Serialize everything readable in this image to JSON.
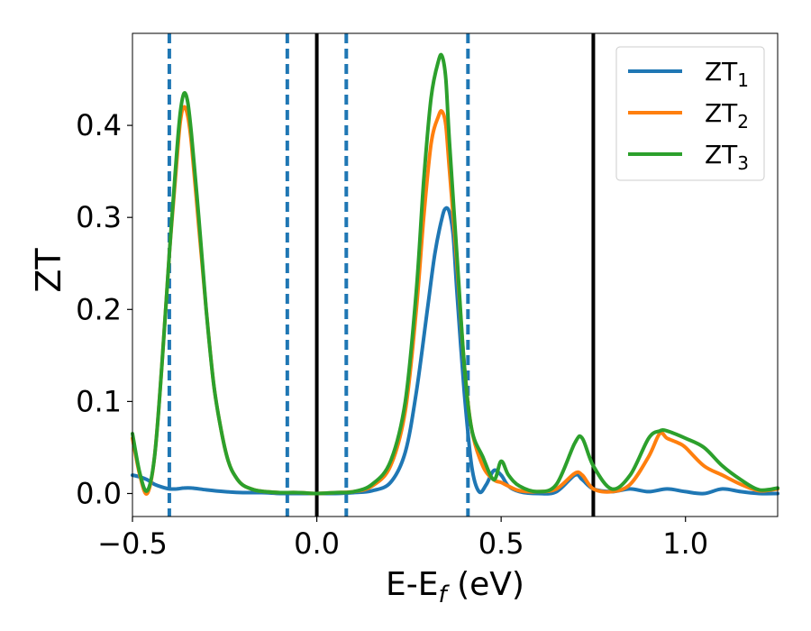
{
  "chart_data": {
    "type": "line",
    "xlabel_main": "E-E",
    "xlabel_sub": "f",
    "xlabel_tail": " (eV)",
    "ylabel": "ZT",
    "xlim": [
      -0.5,
      1.25
    ],
    "ylim": [
      -0.025,
      0.5
    ],
    "x_ticks": [
      {
        "value": -0.5,
        "label": "−0.5"
      },
      {
        "value": 0.0,
        "label": "0.0"
      },
      {
        "value": 0.5,
        "label": "0.5"
      },
      {
        "value": 1.0,
        "label": "1.0"
      }
    ],
    "y_ticks": [
      {
        "value": 0.0,
        "label": "0.0"
      },
      {
        "value": 0.1,
        "label": "0.1"
      },
      {
        "value": 0.2,
        "label": "0.2"
      },
      {
        "value": 0.3,
        "label": "0.3"
      },
      {
        "value": 0.4,
        "label": "0.4"
      }
    ],
    "grid": false,
    "legend_position": "top-right",
    "vlines_solid": [
      0.0,
      0.75
    ],
    "vlines_dashed": [
      -0.4,
      -0.08,
      0.08,
      0.41
    ],
    "series": [
      {
        "name": "ZT",
        "sub": "1",
        "color": "#1f77b4",
        "x": [
          -0.5,
          -0.48,
          -0.46,
          -0.44,
          -0.42,
          -0.4,
          -0.38,
          -0.36,
          -0.34,
          -0.3,
          -0.25,
          -0.2,
          -0.15,
          -0.1,
          -0.05,
          0.0,
          0.05,
          0.1,
          0.15,
          0.2,
          0.24,
          0.27,
          0.3,
          0.32,
          0.34,
          0.35,
          0.36,
          0.37,
          0.38,
          0.4,
          0.42,
          0.44,
          0.46,
          0.48,
          0.5,
          0.52,
          0.55,
          0.6,
          0.65,
          0.7,
          0.72,
          0.75,
          0.8,
          0.85,
          0.9,
          0.95,
          1.0,
          1.05,
          1.1,
          1.15,
          1.2,
          1.25
        ],
        "y": [
          0.02,
          0.018,
          0.015,
          0.01,
          0.007,
          0.005,
          0.005,
          0.006,
          0.006,
          0.004,
          0.002,
          0.001,
          0.001,
          0.0,
          0.0,
          0.0,
          0.0,
          0.001,
          0.003,
          0.012,
          0.045,
          0.11,
          0.2,
          0.26,
          0.3,
          0.31,
          0.305,
          0.28,
          0.22,
          0.11,
          0.03,
          0.002,
          0.01,
          0.025,
          0.02,
          0.008,
          0.002,
          0.0,
          0.002,
          0.02,
          0.015,
          0.005,
          0.002,
          0.005,
          0.002,
          0.005,
          0.002,
          0.0,
          0.005,
          0.002,
          0.0,
          0.0
        ]
      },
      {
        "name": "ZT",
        "sub": "2",
        "color": "#ff7f0e",
        "x": [
          -0.5,
          -0.48,
          -0.46,
          -0.44,
          -0.42,
          -0.4,
          -0.38,
          -0.37,
          -0.36,
          -0.35,
          -0.34,
          -0.32,
          -0.3,
          -0.28,
          -0.26,
          -0.24,
          -0.22,
          -0.2,
          -0.17,
          -0.14,
          -0.1,
          -0.05,
          0.0,
          0.05,
          0.1,
          0.15,
          0.2,
          0.24,
          0.27,
          0.29,
          0.31,
          0.33,
          0.34,
          0.35,
          0.36,
          0.38,
          0.4,
          0.42,
          0.45,
          0.48,
          0.5,
          0.52,
          0.55,
          0.6,
          0.65,
          0.7,
          0.72,
          0.75,
          0.8,
          0.85,
          0.9,
          0.93,
          0.95,
          0.98,
          1.0,
          1.05,
          1.1,
          1.15,
          1.2,
          1.25
        ],
        "y": [
          0.06,
          0.02,
          0.0,
          0.04,
          0.14,
          0.26,
          0.36,
          0.405,
          0.42,
          0.41,
          0.38,
          0.29,
          0.2,
          0.12,
          0.07,
          0.035,
          0.018,
          0.009,
          0.004,
          0.002,
          0.001,
          0.001,
          0.0,
          0.001,
          0.002,
          0.008,
          0.03,
          0.09,
          0.2,
          0.3,
          0.38,
          0.41,
          0.415,
          0.4,
          0.35,
          0.25,
          0.14,
          0.07,
          0.03,
          0.015,
          0.012,
          0.008,
          0.003,
          0.002,
          0.005,
          0.022,
          0.02,
          0.005,
          0.002,
          0.01,
          0.04,
          0.065,
          0.06,
          0.055,
          0.05,
          0.03,
          0.02,
          0.01,
          0.003,
          0.005
        ]
      },
      {
        "name": "ZT",
        "sub": "3",
        "color": "#2ca02c",
        "x": [
          -0.5,
          -0.48,
          -0.46,
          -0.44,
          -0.42,
          -0.4,
          -0.38,
          -0.37,
          -0.36,
          -0.35,
          -0.34,
          -0.32,
          -0.3,
          -0.28,
          -0.26,
          -0.24,
          -0.22,
          -0.2,
          -0.17,
          -0.14,
          -0.1,
          -0.05,
          0.0,
          0.05,
          0.1,
          0.15,
          0.2,
          0.24,
          0.27,
          0.29,
          0.31,
          0.33,
          0.34,
          0.35,
          0.36,
          0.38,
          0.4,
          0.42,
          0.45,
          0.48,
          0.5,
          0.52,
          0.55,
          0.6,
          0.65,
          0.7,
          0.72,
          0.75,
          0.8,
          0.85,
          0.9,
          0.93,
          0.95,
          1.0,
          1.05,
          1.1,
          1.15,
          1.2,
          1.25
        ],
        "y": [
          0.065,
          0.022,
          0.003,
          0.04,
          0.14,
          0.26,
          0.37,
          0.415,
          0.435,
          0.425,
          0.39,
          0.3,
          0.2,
          0.12,
          0.07,
          0.035,
          0.018,
          0.009,
          0.004,
          0.002,
          0.001,
          0.001,
          0.0,
          0.001,
          0.002,
          0.01,
          0.035,
          0.1,
          0.22,
          0.34,
          0.43,
          0.47,
          0.475,
          0.45,
          0.38,
          0.26,
          0.14,
          0.07,
          0.04,
          0.015,
          0.035,
          0.02,
          0.008,
          0.002,
          0.01,
          0.055,
          0.06,
          0.03,
          0.005,
          0.02,
          0.06,
          0.068,
          0.068,
          0.06,
          0.05,
          0.03,
          0.015,
          0.004,
          0.006
        ]
      }
    ]
  }
}
